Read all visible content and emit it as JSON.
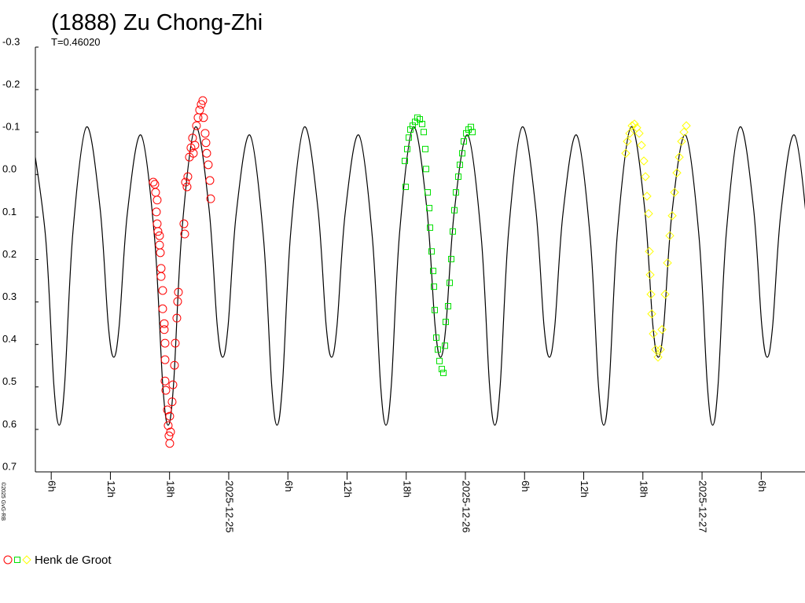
{
  "chart_data": {
    "type": "scatter",
    "title": "(1888) Zu Chong-Zhi",
    "subtitle": "T=0.46020",
    "copyright": "©2025 GvG-RB",
    "observer": "Henk de Groot",
    "xlim": [
      24.183,
      27.435
    ],
    "ylim": [
      -0.3,
      0.7
    ],
    "y_inverted": true,
    "xticks": [
      {
        "value": 24.25,
        "label": "6h"
      },
      {
        "value": 24.5,
        "label": "12h"
      },
      {
        "value": 24.75,
        "label": "18h"
      },
      {
        "value": 25,
        "label": "2025-12-25"
      },
      {
        "value": 25.25,
        "label": "6h"
      },
      {
        "value": 25.5,
        "label": "12h"
      },
      {
        "value": 25.75,
        "label": "18h"
      },
      {
        "value": 26,
        "label": "2025-12-26"
      },
      {
        "value": 26.25,
        "label": "6h"
      },
      {
        "value": 26.5,
        "label": "12h"
      },
      {
        "value": 26.75,
        "label": "18h"
      },
      {
        "value": 27,
        "label": "2025-12-27"
      },
      {
        "value": 27.25,
        "label": "6h"
      }
    ],
    "yticks": [
      -0.3,
      -0.2,
      -0.1,
      {
        "value": 0,
        "label": "0.0"
      },
      0.1,
      0.2,
      0.3,
      0.4,
      0.5,
      0.6,
      0.7
    ],
    "curve": {
      "color": "#000000",
      "x": [
        24.1689,
        24.2264,
        24.2609,
        24.2839,
        24.3069,
        24.3414,
        24.399,
        24.4565,
        24.491,
        24.514,
        24.537,
        24.5715,
        24.6291,
        24.6866,
        24.7211,
        24.7441,
        24.7671,
        24.8016,
        24.8592,
        24.9167,
        24.9512,
        24.9742,
        24.9972,
        25.0317,
        25.0893,
        25.1468,
        25.1813,
        25.2043,
        25.2273,
        25.2618,
        25.3194,
        25.3769,
        25.4114,
        25.4344,
        25.4574,
        25.4919,
        25.5495,
        25.607,
        25.6415,
        25.6645,
        25.6875,
        25.722,
        25.7796,
        25.8371,
        25.8716,
        25.8946,
        25.9176,
        25.9521,
        26.0097,
        26.0672,
        26.1017,
        26.1247,
        26.1477,
        26.1822,
        26.2398,
        26.2973,
        26.3318,
        26.3548,
        26.3778,
        26.4123,
        26.4699,
        26.5274,
        26.5619,
        26.5849,
        26.6079,
        26.6424,
        26.7,
        26.7575,
        26.792,
        26.815,
        26.838,
        26.8725,
        26.9301,
        26.9876,
        27.0221,
        27.0451,
        27.0681,
        27.1026,
        27.1602,
        27.2177,
        27.2522,
        27.2752,
        27.2982,
        27.3327,
        27.3903,
        27.4478,
        27.4823,
        27.5053
      ],
      "values": [
        -0.093,
        0.149,
        0.494,
        0.59,
        0.492,
        0.137,
        -0.112,
        0.08,
        0.354,
        0.43,
        0.357,
        0.092,
        -0.093,
        0.149,
        0.494,
        0.59,
        0.492,
        0.137,
        -0.112,
        0.08,
        0.354,
        0.43,
        0.357,
        0.092,
        -0.093,
        0.149,
        0.494,
        0.59,
        0.492,
        0.137,
        -0.112,
        0.08,
        0.354,
        0.43,
        0.357,
        0.092,
        -0.093,
        0.149,
        0.494,
        0.59,
        0.492,
        0.137,
        -0.112,
        0.08,
        0.354,
        0.43,
        0.357,
        0.092,
        -0.093,
        0.149,
        0.494,
        0.59,
        0.492,
        0.137,
        -0.112,
        0.08,
        0.354,
        0.43,
        0.357,
        0.092,
        -0.093,
        0.149,
        0.494,
        0.59,
        0.492,
        0.137,
        -0.112,
        0.08,
        0.354,
        0.43,
        0.357,
        0.092,
        -0.093,
        0.149,
        0.494,
        0.59,
        0.492,
        0.137,
        -0.112,
        0.08,
        0.354,
        0.43,
        0.357,
        0.092,
        -0.093,
        0.149,
        0.494,
        0.59
      ]
    },
    "series": [
      {
        "color": "#ff0000",
        "marker": "circle",
        "x": [
          24.6811,
          24.6877,
          24.691,
          24.6977,
          24.6944,
          24.6977,
          24.701,
          24.7076,
          24.7076,
          24.711,
          24.7143,
          24.7143,
          24.7209,
          24.7209,
          24.7276,
          24.7276,
          24.7309,
          24.7309,
          24.7309,
          24.7342,
          24.7409,
          24.7442,
          24.7475,
          24.7508,
          24.7542,
          24.7508,
          24.7608,
          24.7641,
          24.7708,
          24.7741,
          24.7807,
          24.7841,
          24.7874,
          24.8106,
          24.814,
          24.8173,
          24.8239,
          24.8272,
          24.8339,
          24.8405,
          24.8472,
          24.8505,
          24.8571,
          24.8638,
          24.8704,
          24.8771,
          24.8837,
          24.8904,
          24.8937,
          24.9003,
          24.9037,
          24.907,
          24.9136,
          24.9203,
          24.9236
        ],
        "values": [
          0.018,
          0.023,
          0.042,
          0.06,
          0.088,
          0.116,
          0.134,
          0.144,
          0.166,
          0.184,
          0.221,
          0.24,
          0.273,
          0.316,
          0.351,
          0.365,
          0.397,
          0.436,
          0.486,
          0.508,
          0.554,
          0.591,
          0.615,
          0.633,
          0.606,
          0.569,
          0.535,
          0.495,
          0.449,
          0.397,
          0.338,
          0.299,
          0.277,
          0.116,
          0.14,
          0.018,
          0.029,
          0.005,
          -0.041,
          -0.063,
          -0.086,
          -0.05,
          -0.069,
          -0.115,
          -0.134,
          -0.152,
          -0.165,
          -0.174,
          -0.134,
          -0.097,
          -0.075,
          -0.05,
          -0.023,
          0.014,
          0.057
        ]
      },
      {
        "color": "#00e000",
        "marker": "square",
        "x": [
          25.7442,
          25.7475,
          25.7542,
          25.7608,
          25.7674,
          25.7774,
          25.7874,
          25.7973,
          25.8073,
          25.8173,
          25.8239,
          25.8306,
          25.8339,
          25.8405,
          25.8472,
          25.8505,
          25.8571,
          25.8638,
          25.8671,
          25.8704,
          25.8771,
          25.8837,
          25.8904,
          25.9003,
          25.907,
          25.9136,
          25.9169,
          25.9269,
          25.9336,
          25.9402,
          25.9468,
          25.9535,
          25.9601,
          25.9701,
          25.9767,
          25.9867,
          25.9934,
          26.0033,
          26.0133,
          26.0233,
          26.0299
        ],
        "values": [
          -0.032,
          0.029,
          -0.06,
          -0.087,
          -0.106,
          -0.115,
          -0.124,
          -0.134,
          -0.13,
          -0.119,
          -0.1,
          -0.06,
          -0.013,
          0.042,
          0.079,
          0.125,
          0.181,
          0.227,
          0.264,
          0.319,
          0.384,
          0.412,
          0.439,
          0.458,
          0.467,
          0.403,
          0.347,
          0.31,
          0.255,
          0.199,
          0.134,
          0.084,
          0.042,
          0.005,
          -0.023,
          -0.05,
          -0.078,
          -0.097,
          -0.106,
          -0.112,
          -0.1
        ]
      },
      {
        "color": "#ffff00",
        "marker": "diamond",
        "x": [
          26.6777,
          26.6844,
          26.6944,
          26.7043,
          26.7143,
          26.7243,
          26.7342,
          26.7442,
          26.7542,
          26.7608,
          26.7674,
          26.7741,
          26.7774,
          26.7807,
          26.7841,
          26.7874,
          26.794,
          26.804,
          26.814,
          26.8239,
          26.8306,
          26.8439,
          26.8538,
          26.8638,
          26.8738,
          26.8837,
          26.8937,
          26.9037,
          26.9136,
          26.9236,
          26.9336
        ],
        "values": [
          -0.05,
          -0.078,
          -0.097,
          -0.115,
          -0.119,
          -0.11,
          -0.097,
          -0.069,
          -0.032,
          0.005,
          0.051,
          0.092,
          0.181,
          0.236,
          0.282,
          0.328,
          0.375,
          0.412,
          0.43,
          0.412,
          0.365,
          0.282,
          0.208,
          0.144,
          0.097,
          0.042,
          -0.004,
          -0.041,
          -0.078,
          -0.1,
          -0.115
        ]
      }
    ]
  }
}
